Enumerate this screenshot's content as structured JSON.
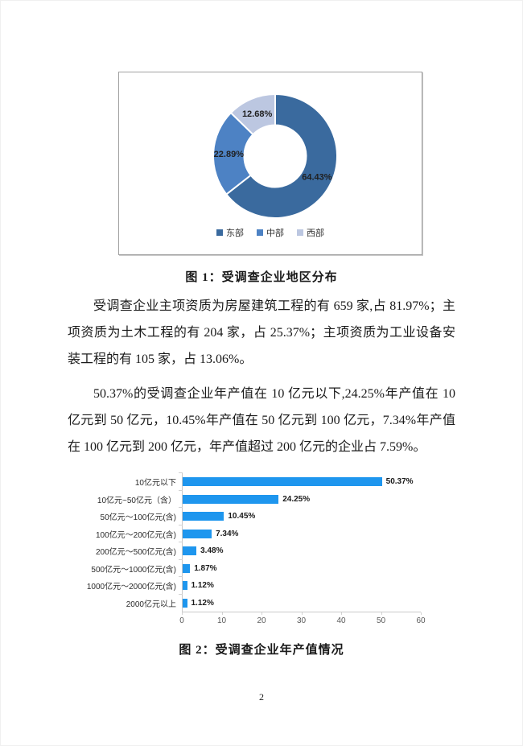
{
  "figure1": {
    "caption": "图 1：受调查企业地区分布"
  },
  "figure2": {
    "caption": "图 2：受调查企业年产值情况"
  },
  "body": {
    "paragraph1": "受调查企业主项资质为房屋建筑工程的有 659 家,占 81.97%；主项资质为土木工程的有 204 家，占 25.37%；主项资质为工业设备安装工程的有 105 家，占 13.06%。",
    "paragraph2": "50.37%的受调查企业年产值在 10 亿元以下,24.25%年产值在 10 亿元到 50 亿元，10.45%年产值在 50 亿元到 100 亿元，7.34%年产值在 100 亿元到 200 亿元，年产值超过 200 亿元的企业占 7.59%。"
  },
  "page": {
    "number": "2"
  },
  "chart_data": [
    {
      "type": "pie",
      "subtype": "donut",
      "title": "受调查企业地区分布",
      "labels": [
        "东部",
        "中部",
        "西部"
      ],
      "values": [
        64.43,
        22.89,
        12.68
      ],
      "value_labels": [
        "64.43%",
        "22.89%",
        "12.68%"
      ],
      "colors": [
        "#3a6a9e",
        "#4d82c4",
        "#bcc7e1"
      ],
      "start_angle_deg": 0,
      "direction": "clockwise",
      "legend_position": "bottom"
    },
    {
      "type": "bar",
      "orientation": "horizontal",
      "title": "受调查企业年产值情况",
      "categories": [
        "10亿元以下",
        "10亿元~50亿元（含）",
        "50亿元～100亿元(含)",
        "100亿元～200亿元(含)",
        "200亿元～500亿元(含)",
        "500亿元～1000亿元(含)",
        "1000亿元～2000亿元(含)",
        "2000亿元以上"
      ],
      "values": [
        50.37,
        24.25,
        10.45,
        7.34,
        3.48,
        1.87,
        1.12,
        1.12
      ],
      "value_labels": [
        "50.37%",
        "24.25%",
        "10.45%",
        "7.34%",
        "3.48%",
        "1.87%",
        "1.12%",
        "1.12%"
      ],
      "bar_color": "#1e96ee",
      "axis_color": "#c9c9c9",
      "xlim": [
        0,
        60
      ],
      "x_ticks": [
        0,
        10,
        20,
        30,
        40,
        50,
        60
      ],
      "grid": false,
      "legend_position": "none"
    }
  ]
}
